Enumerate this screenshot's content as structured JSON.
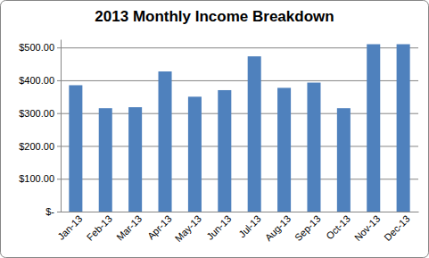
{
  "chart_data": {
    "type": "bar",
    "title": "2013 Monthly Income Breakdown",
    "categories": [
      "Jan-13",
      "Feb-13",
      "Mar-13",
      "Apr-13",
      "May-13",
      "Jun-13",
      "Jul-13",
      "Aug-13",
      "Sep-13",
      "Oct-13",
      "Nov-13",
      "Dec-13"
    ],
    "values": [
      385,
      315,
      318,
      427,
      350,
      370,
      473,
      377,
      393,
      315,
      510,
      510
    ],
    "color": "#4f81bd",
    "ylim": [
      0,
      525
    ],
    "yticks": [
      {
        "value": 0,
        "label": "$-"
      },
      {
        "value": 100,
        "label": "$100.00"
      },
      {
        "value": 200,
        "label": "$200.00"
      },
      {
        "value": 300,
        "label": "$300.00"
      },
      {
        "value": 400,
        "label": "$400.00"
      },
      {
        "value": 500,
        "label": "$500.00"
      }
    ],
    "grid": true
  }
}
